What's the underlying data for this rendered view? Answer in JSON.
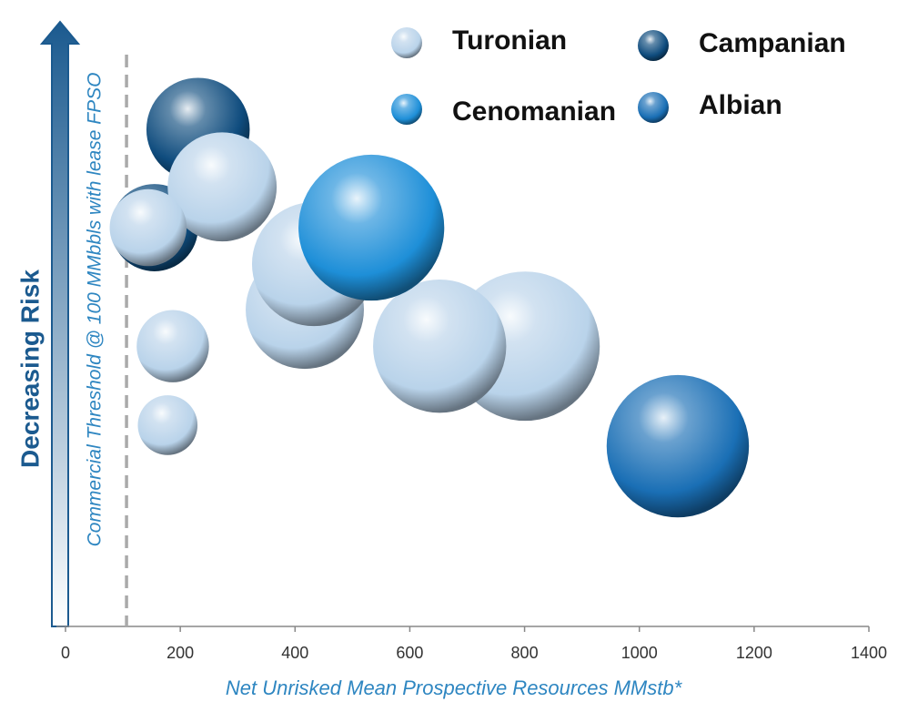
{
  "chart_data": {
    "type": "scatter",
    "x_label": "Net Unrisked Mean Prospective Resources MMstb*",
    "y_label": "Decreasing Risk",
    "threshold": 100,
    "threshold_label": "Commercial Threshold @ 100 MMbbls with lease FPSO",
    "xlim": [
      0,
      1400
    ],
    "xticks": [
      0,
      200,
      400,
      600,
      800,
      1000,
      1200,
      1400
    ],
    "ylim": [
      0,
      100
    ],
    "series": [
      {
        "name": "Campanian",
        "color": "#0f4c7e",
        "x": [
          231,
          155
        ],
        "values": [
          80.5,
          64.6
        ],
        "sizes": [
          90,
          76
        ]
      },
      {
        "name": "Turonian",
        "color": "#b9d3ea",
        "x": [
          273,
          144,
          187,
          178,
          417,
          433,
          801,
          652
        ],
        "values": [
          71.2,
          64.6,
          45.4,
          32.6,
          51.3,
          58.7,
          45.4,
          45.4
        ],
        "sizes": [
          95,
          67,
          63,
          52,
          103,
          108,
          130,
          116
        ]
      },
      {
        "name": "Cenomanian",
        "color": "#1e8fd8",
        "x": [
          533
        ],
        "values": [
          64.6
        ],
        "sizes": [
          127
        ]
      },
      {
        "name": "Albian",
        "color": "#1a6fb5",
        "x": [
          1067
        ],
        "values": [
          29.2
        ],
        "sizes": [
          124
        ]
      }
    ]
  }
}
